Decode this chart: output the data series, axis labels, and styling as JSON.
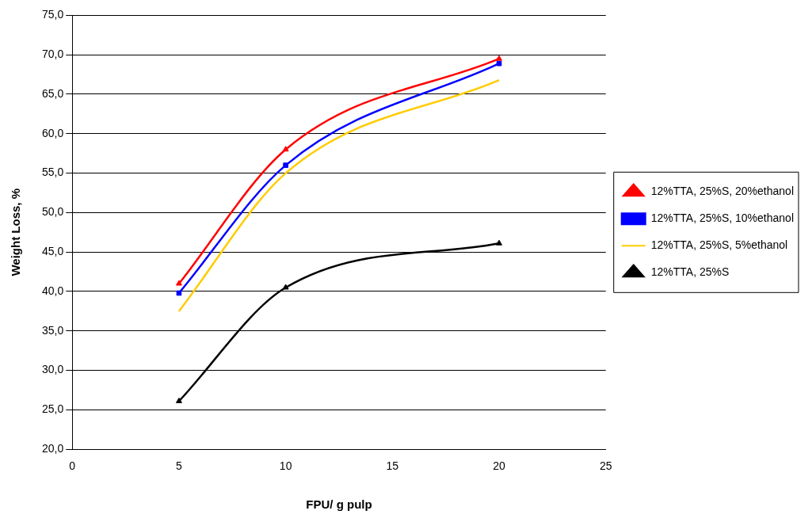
{
  "chart_data": {
    "type": "line",
    "xlabel": "FPU/ g pulp",
    "ylabel": "Weight Loss, %",
    "x": [
      5,
      10,
      20
    ],
    "series": [
      {
        "name": "12%TTA, 25%S, 20%ethanol",
        "color": "#ff0000",
        "marker": "triangle",
        "values": [
          41.0,
          58.0,
          69.5
        ]
      },
      {
        "name": "12%TTA, 25%S, 10%ethanol",
        "color": "#0000ff",
        "marker": "square",
        "values": [
          39.8,
          56.0,
          68.9
        ]
      },
      {
        "name": "12%TTA, 25%S, 5%ethanol",
        "color": "#ffcc00",
        "marker": "none",
        "values": [
          37.5,
          55.0,
          66.8
        ]
      },
      {
        "name": "12%TTA, 25%S",
        "color": "#000000",
        "marker": "triangle",
        "values": [
          26.1,
          40.5,
          46.1
        ]
      }
    ],
    "xlim": [
      0,
      25
    ],
    "xticks": [
      0,
      5,
      10,
      15,
      20,
      25
    ],
    "ylim": [
      20,
      75
    ],
    "yticks": [
      {
        "value": 20,
        "label": "20,0"
      },
      {
        "value": 25,
        "label": "25,0"
      },
      {
        "value": 30,
        "label": "30,0"
      },
      {
        "value": 35,
        "label": "35,0"
      },
      {
        "value": 40,
        "label": "40,0"
      },
      {
        "value": 45,
        "label": "45,0"
      },
      {
        "value": 50,
        "label": "50,0"
      },
      {
        "value": 55,
        "label": "55,0"
      },
      {
        "value": 60,
        "label": "60,0"
      },
      {
        "value": 65,
        "label": "65,0"
      },
      {
        "value": 70,
        "label": "70,0"
      },
      {
        "value": 75,
        "label": "75,0"
      }
    ],
    "grid": "y",
    "legend": "right",
    "line_style": "solid"
  }
}
